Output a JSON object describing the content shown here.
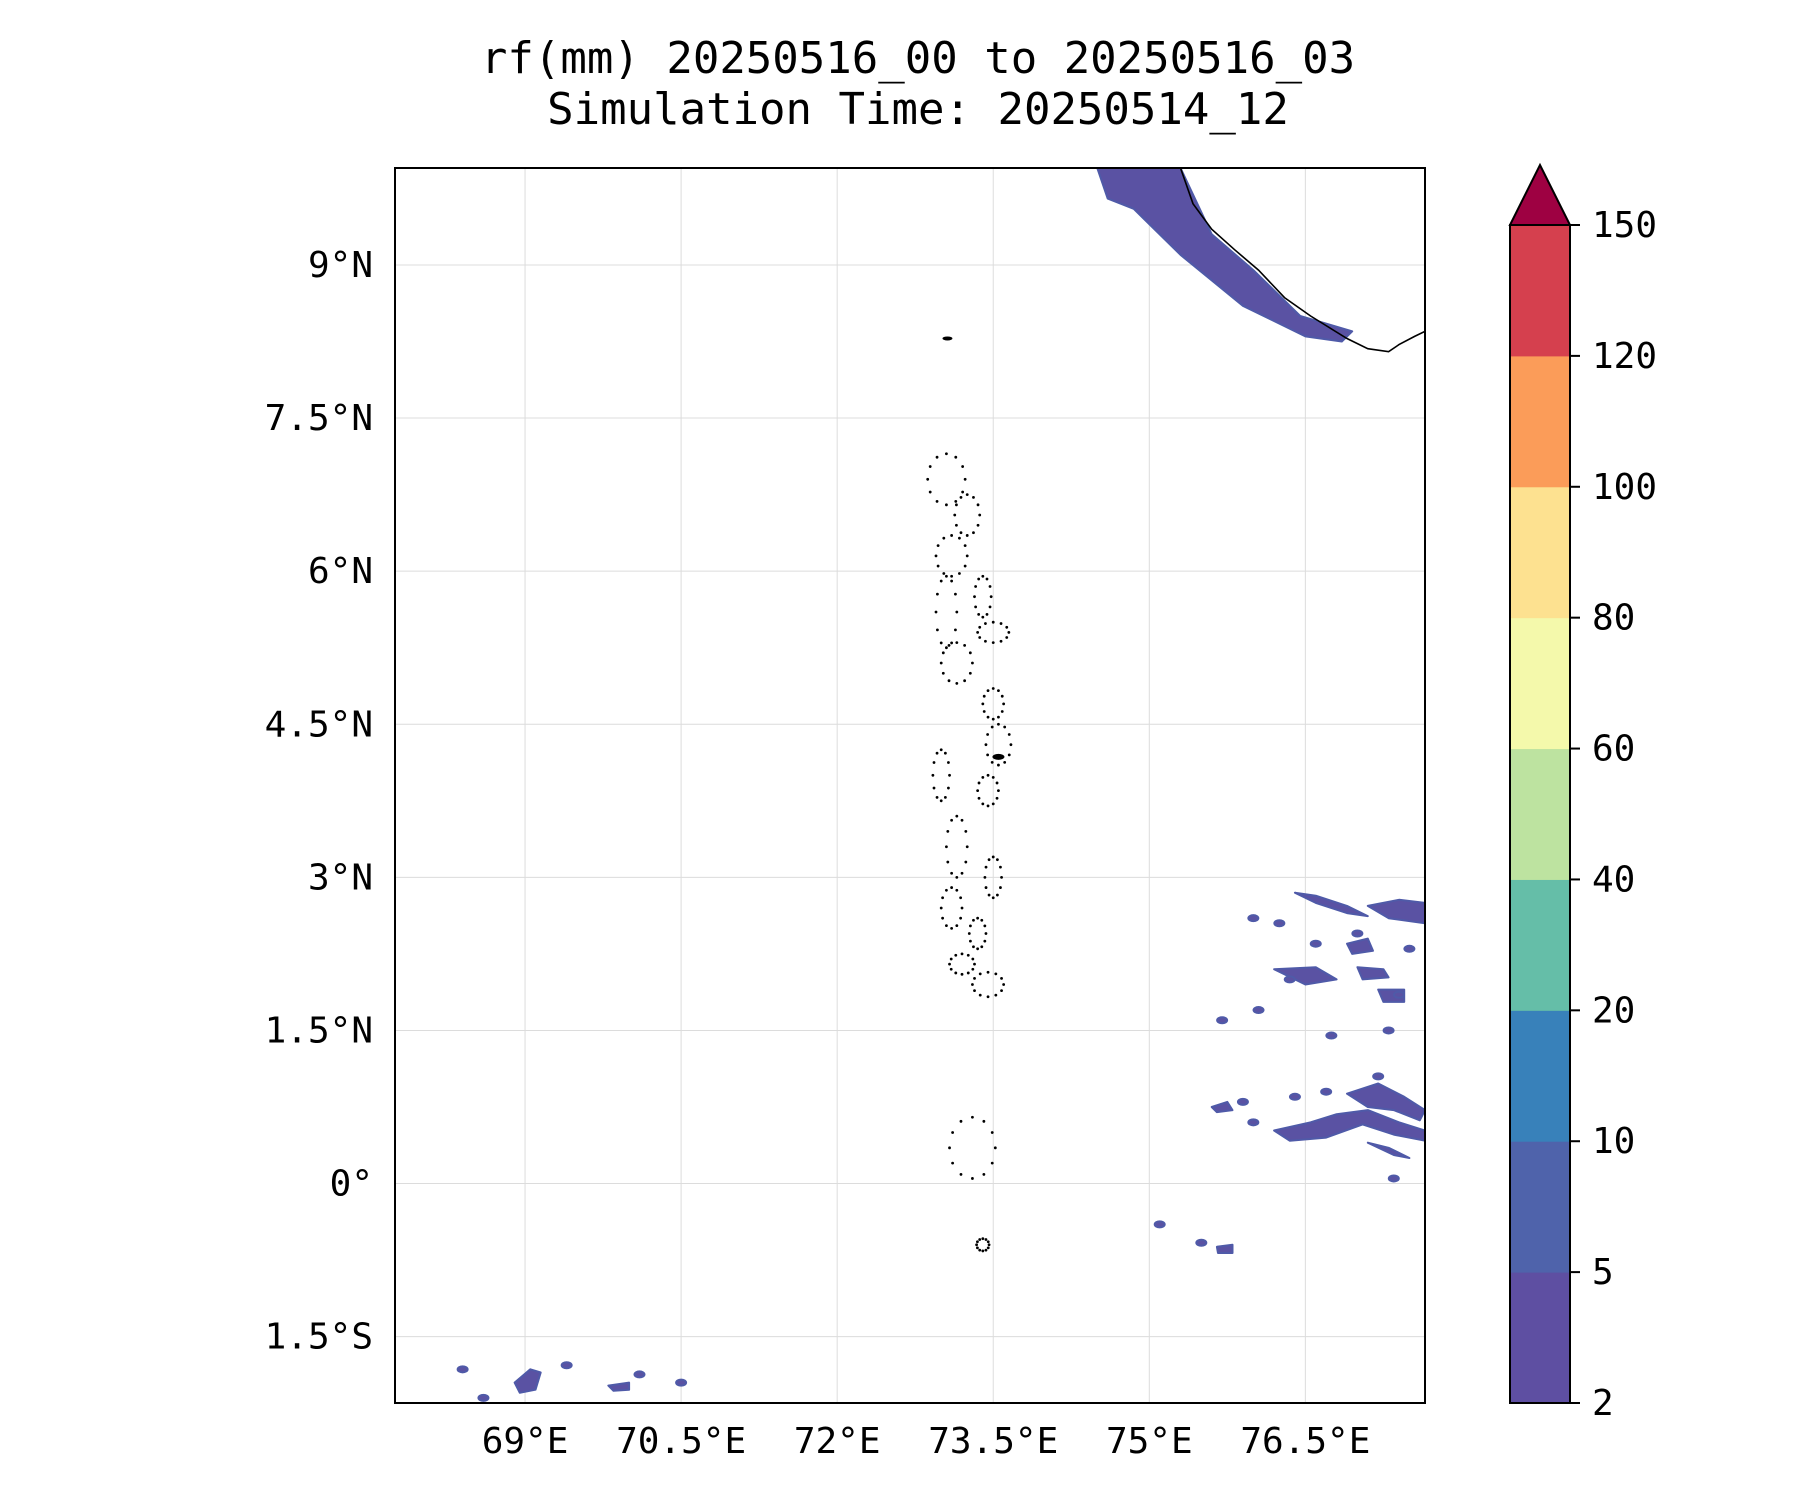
{
  "title": {
    "line1": "rf(mm) 20250516_00 to 20250516_03",
    "line2": "Simulation Time: 20250514_12"
  },
  "map": {
    "lon_range": [
      67.75,
      77.65
    ],
    "lat_range": [
      -2.15,
      9.95
    ],
    "x_ticks": [
      {
        "value": 69.0,
        "label": "69°E"
      },
      {
        "value": 70.5,
        "label": "70.5°E"
      },
      {
        "value": 72.0,
        "label": "72°E"
      },
      {
        "value": 73.5,
        "label": "73.5°E"
      },
      {
        "value": 75.0,
        "label": "75°E"
      },
      {
        "value": 76.5,
        "label": "76.5°E"
      }
    ],
    "y_ticks": [
      {
        "value": 9.0,
        "label": "9°N"
      },
      {
        "value": 7.5,
        "label": "7.5°N"
      },
      {
        "value": 6.0,
        "label": "6°N"
      },
      {
        "value": 4.5,
        "label": "4.5°N"
      },
      {
        "value": 3.0,
        "label": "3°N"
      },
      {
        "value": 1.5,
        "label": "1.5°N"
      },
      {
        "value": 0.0,
        "label": "0°"
      },
      {
        "value": -1.5,
        "label": "1.5°S"
      }
    ],
    "gridlines": true
  },
  "colorbar": {
    "levels": [
      2,
      5,
      10,
      20,
      40,
      60,
      80,
      100,
      120,
      150
    ],
    "labels": [
      "2",
      "5",
      "10",
      "20",
      "40",
      "60",
      "80",
      "100",
      "120",
      "150"
    ],
    "colors": [
      "#5e4fa2",
      "#4f63ab",
      "#3881ba",
      "#65bea8",
      "#bde3a0",
      "#f4f9ab",
      "#fde190",
      "#fb9c59",
      "#d5404e"
    ],
    "extend_color": "#9e0142",
    "extend": "max"
  },
  "chart_data": {
    "type": "heatmap",
    "variable": "rf(mm)",
    "rain_regions": [
      {
        "name": "kerala-coast-band",
        "level": 2,
        "points": [
          [
            74.5,
            9.95
          ],
          [
            75.3,
            9.95
          ],
          [
            75.6,
            9.3
          ],
          [
            76.0,
            8.95
          ],
          [
            76.45,
            8.5
          ],
          [
            76.95,
            8.35
          ],
          [
            76.85,
            8.25
          ],
          [
            76.5,
            8.3
          ],
          [
            75.9,
            8.6
          ],
          [
            75.3,
            9.1
          ],
          [
            74.85,
            9.55
          ],
          [
            74.6,
            9.65
          ]
        ]
      },
      {
        "name": "east-band-1",
        "level": 2,
        "points": [
          [
            76.4,
            2.85
          ],
          [
            76.6,
            2.75
          ],
          [
            76.9,
            2.65
          ],
          [
            77.1,
            2.62
          ],
          [
            76.9,
            2.72
          ],
          [
            76.6,
            2.82
          ]
        ]
      },
      {
        "name": "east-band-2",
        "level": 2,
        "points": [
          [
            77.1,
            2.72
          ],
          [
            77.4,
            2.78
          ],
          [
            77.65,
            2.75
          ],
          [
            77.65,
            2.55
          ],
          [
            77.3,
            2.6
          ]
        ]
      },
      {
        "name": "east-band-3",
        "level": 2,
        "points": [
          [
            76.2,
            2.1
          ],
          [
            76.6,
            2.12
          ],
          [
            76.8,
            2.0
          ],
          [
            76.5,
            1.95
          ]
        ]
      },
      {
        "name": "east-band-4",
        "level": 2,
        "points": [
          [
            77.0,
            2.12
          ],
          [
            77.25,
            2.1
          ],
          [
            77.3,
            2.02
          ],
          [
            77.05,
            2.0
          ]
        ]
      },
      {
        "name": "east-band-5",
        "level": 2,
        "points": [
          [
            76.2,
            0.52
          ],
          [
            76.55,
            0.6
          ],
          [
            76.8,
            0.68
          ],
          [
            77.1,
            0.72
          ],
          [
            77.4,
            0.6
          ],
          [
            77.65,
            0.52
          ],
          [
            77.65,
            0.42
          ],
          [
            77.35,
            0.48
          ],
          [
            77.05,
            0.58
          ],
          [
            76.7,
            0.45
          ],
          [
            76.35,
            0.42
          ]
        ]
      },
      {
        "name": "east-band-6",
        "level": 2,
        "points": [
          [
            76.9,
            0.88
          ],
          [
            77.2,
            0.98
          ],
          [
            77.45,
            0.85
          ],
          [
            77.65,
            0.72
          ],
          [
            77.6,
            0.62
          ],
          [
            77.35,
            0.72
          ],
          [
            77.1,
            0.75
          ]
        ]
      },
      {
        "name": "east-band-7",
        "level": 2,
        "points": [
          [
            77.1,
            0.4
          ],
          [
            77.35,
            0.28
          ],
          [
            77.5,
            0.25
          ],
          [
            77.3,
            0.35
          ]
        ]
      },
      {
        "name": "east-blob-1",
        "level": 2,
        "points": [
          [
            76.9,
            2.35
          ],
          [
            77.1,
            2.4
          ],
          [
            77.15,
            2.28
          ],
          [
            76.95,
            2.25
          ]
        ]
      },
      {
        "name": "east-blob-2",
        "level": 2,
        "points": [
          [
            77.2,
            1.9
          ],
          [
            77.45,
            1.9
          ],
          [
            77.45,
            1.78
          ],
          [
            77.25,
            1.78
          ]
        ]
      },
      {
        "name": "east-blob-3",
        "level": 2,
        "points": [
          [
            75.6,
            0.75
          ],
          [
            75.75,
            0.8
          ],
          [
            75.8,
            0.72
          ],
          [
            75.65,
            0.7
          ]
        ]
      },
      {
        "name": "east-blob-4",
        "level": 2,
        "points": [
          [
            75.65,
            -0.62
          ],
          [
            75.8,
            -0.6
          ],
          [
            75.8,
            -0.68
          ],
          [
            75.66,
            -0.68
          ]
        ]
      },
      {
        "name": "sw-blob-1",
        "level": 2,
        "points": [
          [
            68.9,
            -1.95
          ],
          [
            69.05,
            -1.82
          ],
          [
            69.15,
            -1.85
          ],
          [
            69.1,
            -2.02
          ],
          [
            68.95,
            -2.05
          ]
        ]
      },
      {
        "name": "sw-blob-2",
        "level": 2,
        "points": [
          [
            69.8,
            -1.98
          ],
          [
            70.0,
            -1.95
          ],
          [
            70.0,
            -2.02
          ],
          [
            69.85,
            -2.03
          ]
        ]
      }
    ],
    "coastline": [
      [
        75.3,
        9.95
      ],
      [
        75.42,
        9.6
      ],
      [
        75.6,
        9.35
      ],
      [
        75.82,
        9.15
      ],
      [
        76.05,
        8.95
      ],
      [
        76.3,
        8.68
      ],
      [
        76.55,
        8.5
      ],
      [
        76.9,
        8.28
      ],
      [
        77.1,
        8.18
      ],
      [
        77.3,
        8.15
      ],
      [
        77.4,
        8.22
      ],
      [
        77.55,
        8.3
      ],
      [
        77.65,
        8.35
      ]
    ]
  }
}
